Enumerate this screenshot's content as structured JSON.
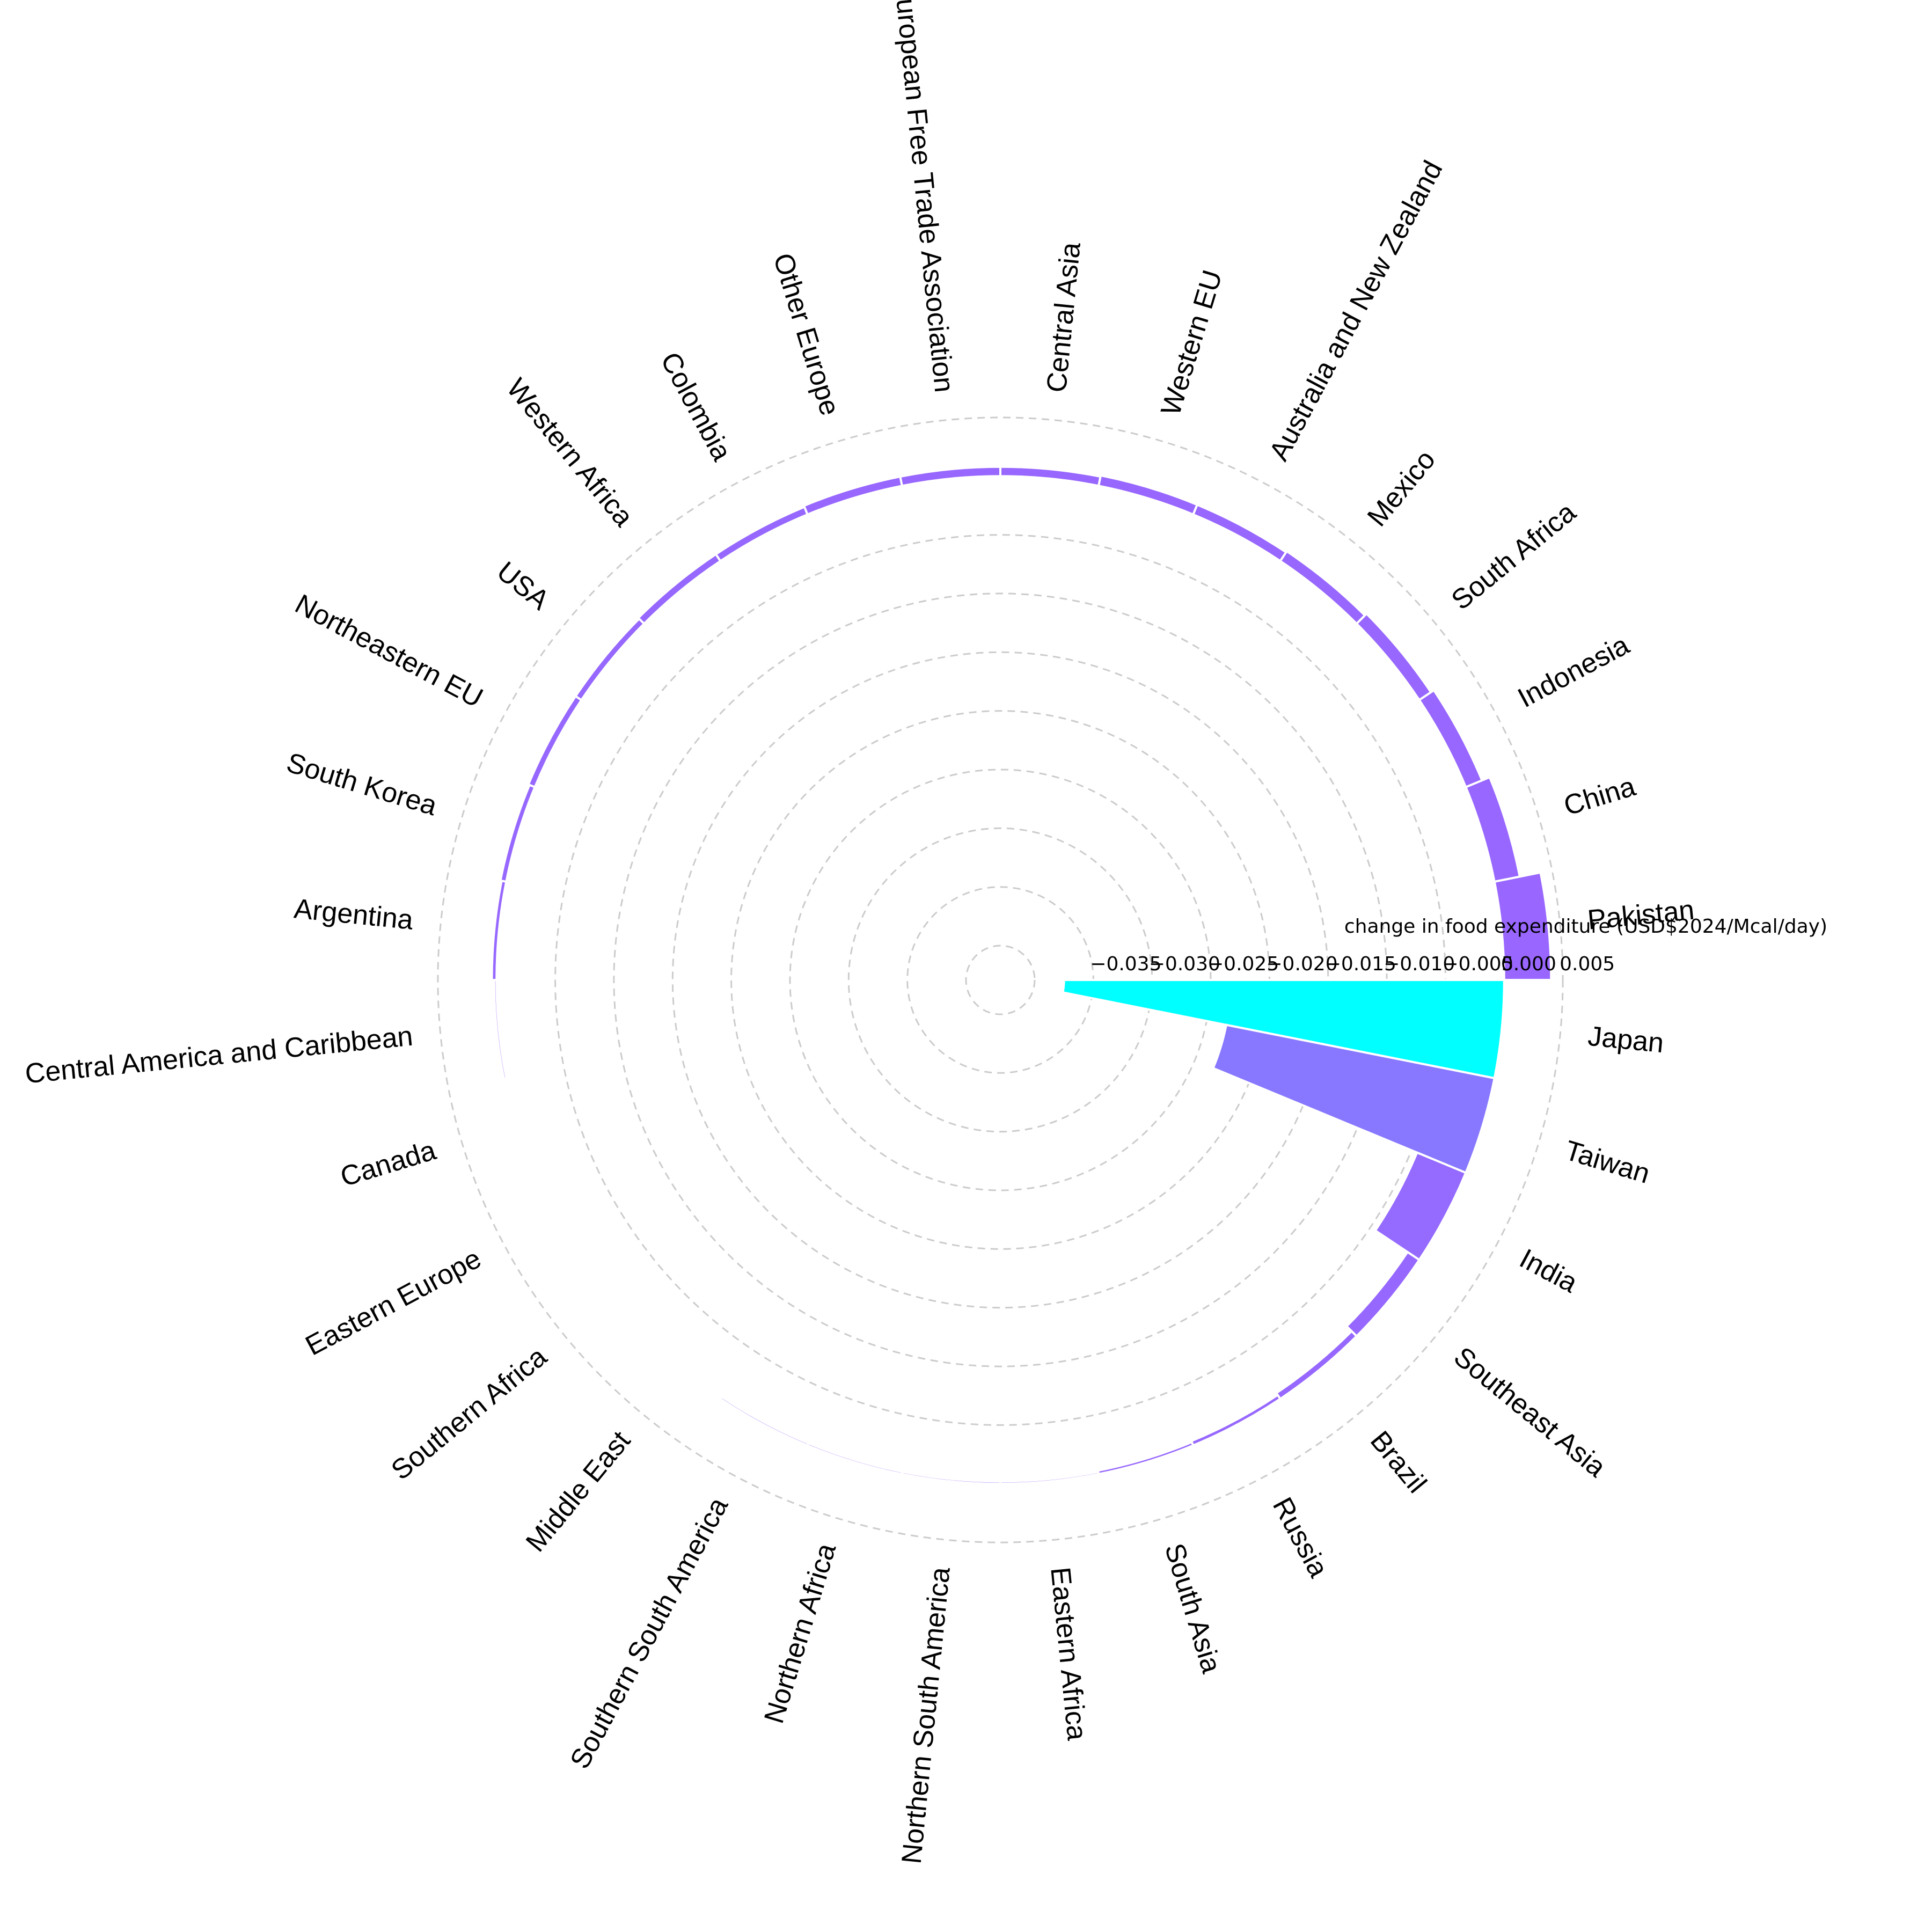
{
  "chart_data": {
    "type": "bar",
    "polar": true,
    "title": "",
    "radial_axis_label": "change in food expenditure (USD$2024/Mcal/day)",
    "radial_ticks": [
      -0.035,
      -0.03,
      -0.025,
      -0.02,
      -0.015,
      -0.01,
      -0.005,
      0.0,
      0.005
    ],
    "radial_tick_labels": [
      "−0.035",
      "−0.030",
      "−0.025",
      "−0.020",
      "−0.015",
      "−0.010",
      "−0.005",
      "0.000",
      "0.005"
    ],
    "rlim": [
      -0.04,
      0.006
    ],
    "grid": true,
    "color_low": "#00ffff",
    "color_high": "#9966ff",
    "categories": [
      "Japan",
      "Taiwan",
      "India",
      "Southeast Asia",
      "Brazil",
      "Russia",
      "South Asia",
      "Eastern Africa",
      "Northern South America",
      "Northern Africa",
      "Southern South America",
      "Middle East",
      "Southern Africa",
      "Eastern Europe",
      "Canada",
      "Central America and Caribbean",
      "Argentina",
      "South Korea",
      "Northeastern EU",
      "USA",
      "Western Africa",
      "Colombia",
      "Other Europe",
      "European Free Trade Association",
      "Central Asia",
      "Western EU",
      "Australia and New Zealand",
      "Mexico",
      "South Africa",
      "Indonesia",
      "China",
      "Pakistan"
    ],
    "values": [
      -0.0375,
      -0.0233,
      -0.0045,
      -0.0012,
      -0.0006,
      -0.0004,
      -0.0003,
      -0.0002,
      -0.0002,
      -0.0002,
      -0.0002,
      -0.0001,
      -0.0001,
      0.0,
      0.0,
      0.0002,
      0.0004,
      0.0005,
      0.0006,
      0.0006,
      0.0007,
      0.0007,
      0.0008,
      0.0008,
      0.0008,
      0.0009,
      0.0009,
      0.001,
      0.0012,
      0.0015,
      0.0022,
      0.004
    ]
  }
}
